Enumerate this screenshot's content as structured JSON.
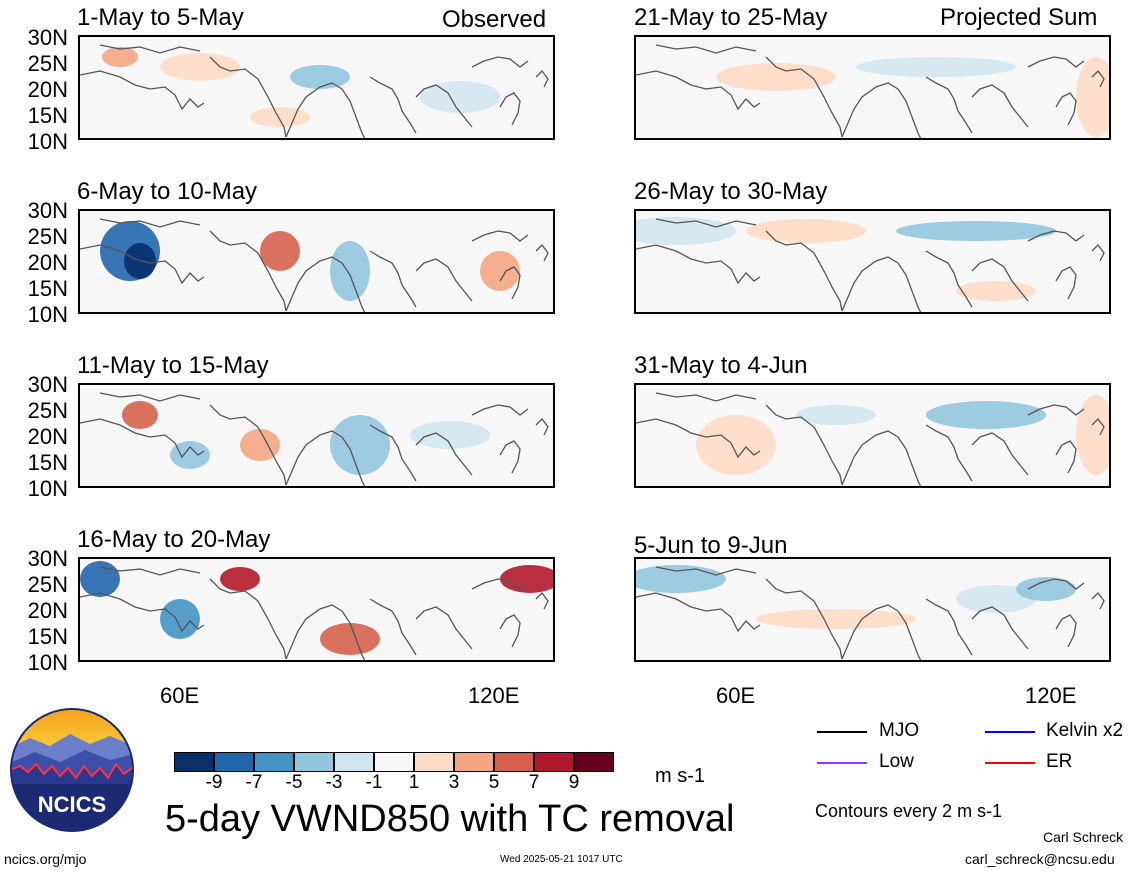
{
  "left_header": "Observed",
  "right_header": "Projected Sum",
  "panels_left": [
    {
      "title": "1-May to 5-May"
    },
    {
      "title": "6-May to 10-May"
    },
    {
      "title": "11-May to 15-May"
    },
    {
      "title": "16-May to 20-May"
    }
  ],
  "panels_right": [
    {
      "title": "21-May to 25-May"
    },
    {
      "title": "26-May to 30-May"
    },
    {
      "title": "31-May to 4-Jun"
    },
    {
      "title": "5-Jun to 9-Jun"
    }
  ],
  "y_axis_labels": [
    "30N",
    "25N",
    "20N",
    "15N",
    "10N"
  ],
  "x_axis_labels": [
    "60E",
    "120E"
  ],
  "colorbar": {
    "labels": [
      "-9",
      "-7",
      "-5",
      "-3",
      "-1",
      "1",
      "3",
      "5",
      "7",
      "9"
    ],
    "colors": [
      "#08306b",
      "#2166ac",
      "#4393c3",
      "#92c5de",
      "#d1e5f0",
      "#f7f7f7",
      "#fddbc7",
      "#f4a582",
      "#d6604d",
      "#b2182b",
      "#67001f"
    ],
    "units": "m s-1"
  },
  "legend": [
    {
      "label": "MJO",
      "color": "#000000",
      "dashed": false
    },
    {
      "label": "Kelvin x2",
      "color": "#0000ff",
      "dashed": false
    },
    {
      "label": "Low",
      "color": "#9933ff",
      "dashed": false
    },
    {
      "label": "ER",
      "color": "#ff0000",
      "dashed": false
    }
  ],
  "contour_note": "Contours every 2 m s-1",
  "main_title": "5-day VWND850 with TC removal",
  "logo_text": "NCICS",
  "url": "ncics.org/mjo",
  "timestamp": "Wed 2025-05-21 1017 UTC",
  "author": "Carl Schreck",
  "email": "carl_schreck@ncsu.edu"
}
